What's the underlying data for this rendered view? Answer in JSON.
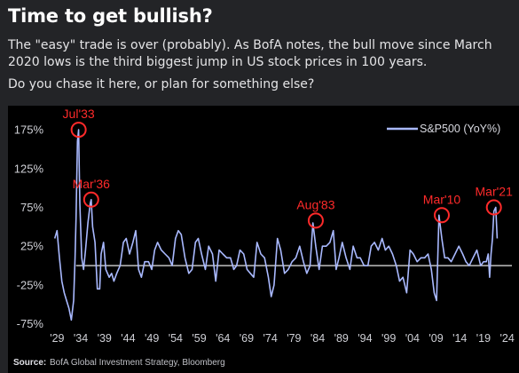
{
  "header": {
    "title": "Time to get bullish?",
    "paragraph1": "The \"easy\" trade is over (probably). As BofA notes, the bull move since March 2020 lows is the third biggest jump in US stock prices in 100 years.",
    "paragraph2": "Do you chase it here, or plan for something else?"
  },
  "colors": {
    "background": "#232427",
    "chart_background": "#000000",
    "series": "#a9b9ff",
    "zero_line": "#ffffff",
    "annotation": "#ff2a2a",
    "text": "#ffffff"
  },
  "source": {
    "label": "Source:",
    "text": "BofA Global Investment Strategy, Bloomberg"
  },
  "chart_data": {
    "type": "line",
    "title": "",
    "xlabel": "",
    "ylabel": "",
    "grid": false,
    "legend_placement": "top-right",
    "ylim": [
      -0.8,
      1.9
    ],
    "xlim": [
      1928,
      2025
    ],
    "y_ticks": [
      {
        "value": 1.75,
        "label": "175%"
      },
      {
        "value": 1.25,
        "label": "125%"
      },
      {
        "value": 0.75,
        "label": "75%"
      },
      {
        "value": 0.25,
        "label": "25%"
      },
      {
        "value": -0.25,
        "label": "-25%"
      },
      {
        "value": -0.75,
        "label": "-75%"
      }
    ],
    "x_ticks": [
      {
        "value": 1929,
        "label": "'29"
      },
      {
        "value": 1934,
        "label": "'34"
      },
      {
        "value": 1939,
        "label": "'39"
      },
      {
        "value": 1944,
        "label": "'44"
      },
      {
        "value": 1949,
        "label": "'49"
      },
      {
        "value": 1954,
        "label": "'54"
      },
      {
        "value": 1959,
        "label": "'59"
      },
      {
        "value": 1964,
        "label": "'64"
      },
      {
        "value": 1969,
        "label": "'69"
      },
      {
        "value": 1974,
        "label": "'74"
      },
      {
        "value": 1979,
        "label": "'79"
      },
      {
        "value": 1984,
        "label": "'84"
      },
      {
        "value": 1989,
        "label": "'89"
      },
      {
        "value": 1994,
        "label": "'94"
      },
      {
        "value": 1999,
        "label": "'99"
      },
      {
        "value": 2004,
        "label": "'04"
      },
      {
        "value": 2009,
        "label": "'09"
      },
      {
        "value": 2014,
        "label": "'14"
      },
      {
        "value": 2019,
        "label": "'19"
      },
      {
        "value": 2024,
        "label": "'24"
      }
    ],
    "series": [
      {
        "name": "S&P500 (YoY%)",
        "x": [
          1928.5,
          1929.0,
          1929.5,
          1930.0,
          1930.5,
          1931.0,
          1931.5,
          1932.0,
          1932.5,
          1932.8,
          1933.0,
          1933.3,
          1933.55,
          1933.8,
          1934.2,
          1934.6,
          1935.0,
          1935.5,
          1936.0,
          1936.2,
          1936.5,
          1937.0,
          1937.5,
          1938.0,
          1938.3,
          1938.8,
          1939.3,
          1940.0,
          1940.5,
          1941.0,
          1941.6,
          1942.3,
          1943.0,
          1943.6,
          1944.3,
          1945.0,
          1945.6,
          1946.2,
          1946.8,
          1947.5,
          1948.3,
          1949.0,
          1949.6,
          1950.2,
          1951.0,
          1951.8,
          1952.6,
          1953.3,
          1954.0,
          1954.6,
          1955.2,
          1956.0,
          1956.8,
          1957.5,
          1958.2,
          1958.8,
          1959.5,
          1960.3,
          1961.0,
          1961.8,
          1962.5,
          1963.2,
          1964.0,
          1964.8,
          1965.6,
          1966.3,
          1966.9,
          1967.6,
          1968.4,
          1969.1,
          1969.8,
          1970.5,
          1971.2,
          1972.0,
          1972.8,
          1973.6,
          1974.2,
          1974.8,
          1975.5,
          1976.2,
          1977.0,
          1977.8,
          1978.6,
          1979.4,
          1980.2,
          1981.0,
          1981.7,
          1982.4,
          1983.0,
          1983.6,
          1984.3,
          1985.0,
          1985.8,
          1986.6,
          1987.3,
          1987.9,
          1988.5,
          1989.2,
          1990.0,
          1990.8,
          1991.5,
          1992.3,
          1993.0,
          1993.8,
          1994.6,
          1995.3,
          1996.0,
          1996.8,
          1997.6,
          1998.3,
          1999.0,
          1999.8,
          2000.6,
          2001.3,
          2002.0,
          2002.8,
          2003.5,
          2004.2,
          2005.0,
          2005.8,
          2006.6,
          2007.3,
          2008.0,
          2008.6,
          2009.1,
          2009.6,
          2010.2,
          2010.8,
          2011.5,
          2012.2,
          2013.0,
          2013.8,
          2014.6,
          2015.3,
          2016.0,
          2016.8,
          2017.6,
          2018.4,
          2019.0,
          2019.6,
          2020.0,
          2020.3,
          2020.6,
          2020.9,
          2021.2,
          2021.6,
          2021.9
        ],
        "y": [
          0.35,
          0.45,
          0.1,
          -0.2,
          -0.35,
          -0.45,
          -0.55,
          -0.7,
          -0.45,
          0.1,
          0.6,
          1.6,
          1.75,
          0.8,
          0.1,
          -0.05,
          0.2,
          0.55,
          0.8,
          0.85,
          0.5,
          0.3,
          -0.3,
          -0.3,
          0.15,
          0.3,
          -0.05,
          -0.15,
          -0.1,
          -0.2,
          -0.1,
          0.0,
          0.3,
          0.35,
          0.15,
          0.3,
          0.45,
          -0.05,
          -0.15,
          0.05,
          0.05,
          -0.05,
          0.2,
          0.3,
          0.2,
          0.15,
          0.1,
          0.0,
          0.35,
          0.45,
          0.4,
          0.1,
          -0.1,
          -0.05,
          0.3,
          0.35,
          0.15,
          -0.05,
          0.25,
          0.15,
          -0.2,
          0.2,
          0.15,
          0.1,
          0.1,
          -0.05,
          0.0,
          0.2,
          0.15,
          -0.05,
          -0.1,
          -0.15,
          0.3,
          0.15,
          0.1,
          -0.15,
          -0.4,
          -0.25,
          0.35,
          0.2,
          -0.1,
          -0.05,
          0.05,
          0.1,
          0.25,
          0.05,
          -0.1,
          0.0,
          0.55,
          0.25,
          -0.05,
          0.25,
          0.25,
          0.3,
          0.45,
          -0.05,
          0.1,
          0.3,
          0.1,
          -0.05,
          0.25,
          0.1,
          0.1,
          0.0,
          0.0,
          0.25,
          0.3,
          0.2,
          0.35,
          0.2,
          0.25,
          0.15,
          0.0,
          -0.2,
          -0.15,
          -0.35,
          0.2,
          0.15,
          0.05,
          0.1,
          0.1,
          0.15,
          -0.05,
          -0.35,
          -0.45,
          0.65,
          0.35,
          0.1,
          0.1,
          0.05,
          0.15,
          0.25,
          0.15,
          0.05,
          0.0,
          0.1,
          0.2,
          0.0,
          0.05,
          0.05,
          0.15,
          -0.15,
          0.15,
          0.35,
          0.7,
          0.75,
          0.35
        ]
      }
    ],
    "annotations": [
      {
        "label": "Jul'33",
        "x": 1933.55,
        "y": 1.75
      },
      {
        "label": "Mar'36",
        "x": 1936.2,
        "y": 0.85
      },
      {
        "label": "Aug'83",
        "x": 1983.6,
        "y": 0.58
      },
      {
        "label": "Mar'10",
        "x": 2010.2,
        "y": 0.65
      },
      {
        "label": "Mar'21",
        "x": 2021.2,
        "y": 0.75
      }
    ]
  }
}
